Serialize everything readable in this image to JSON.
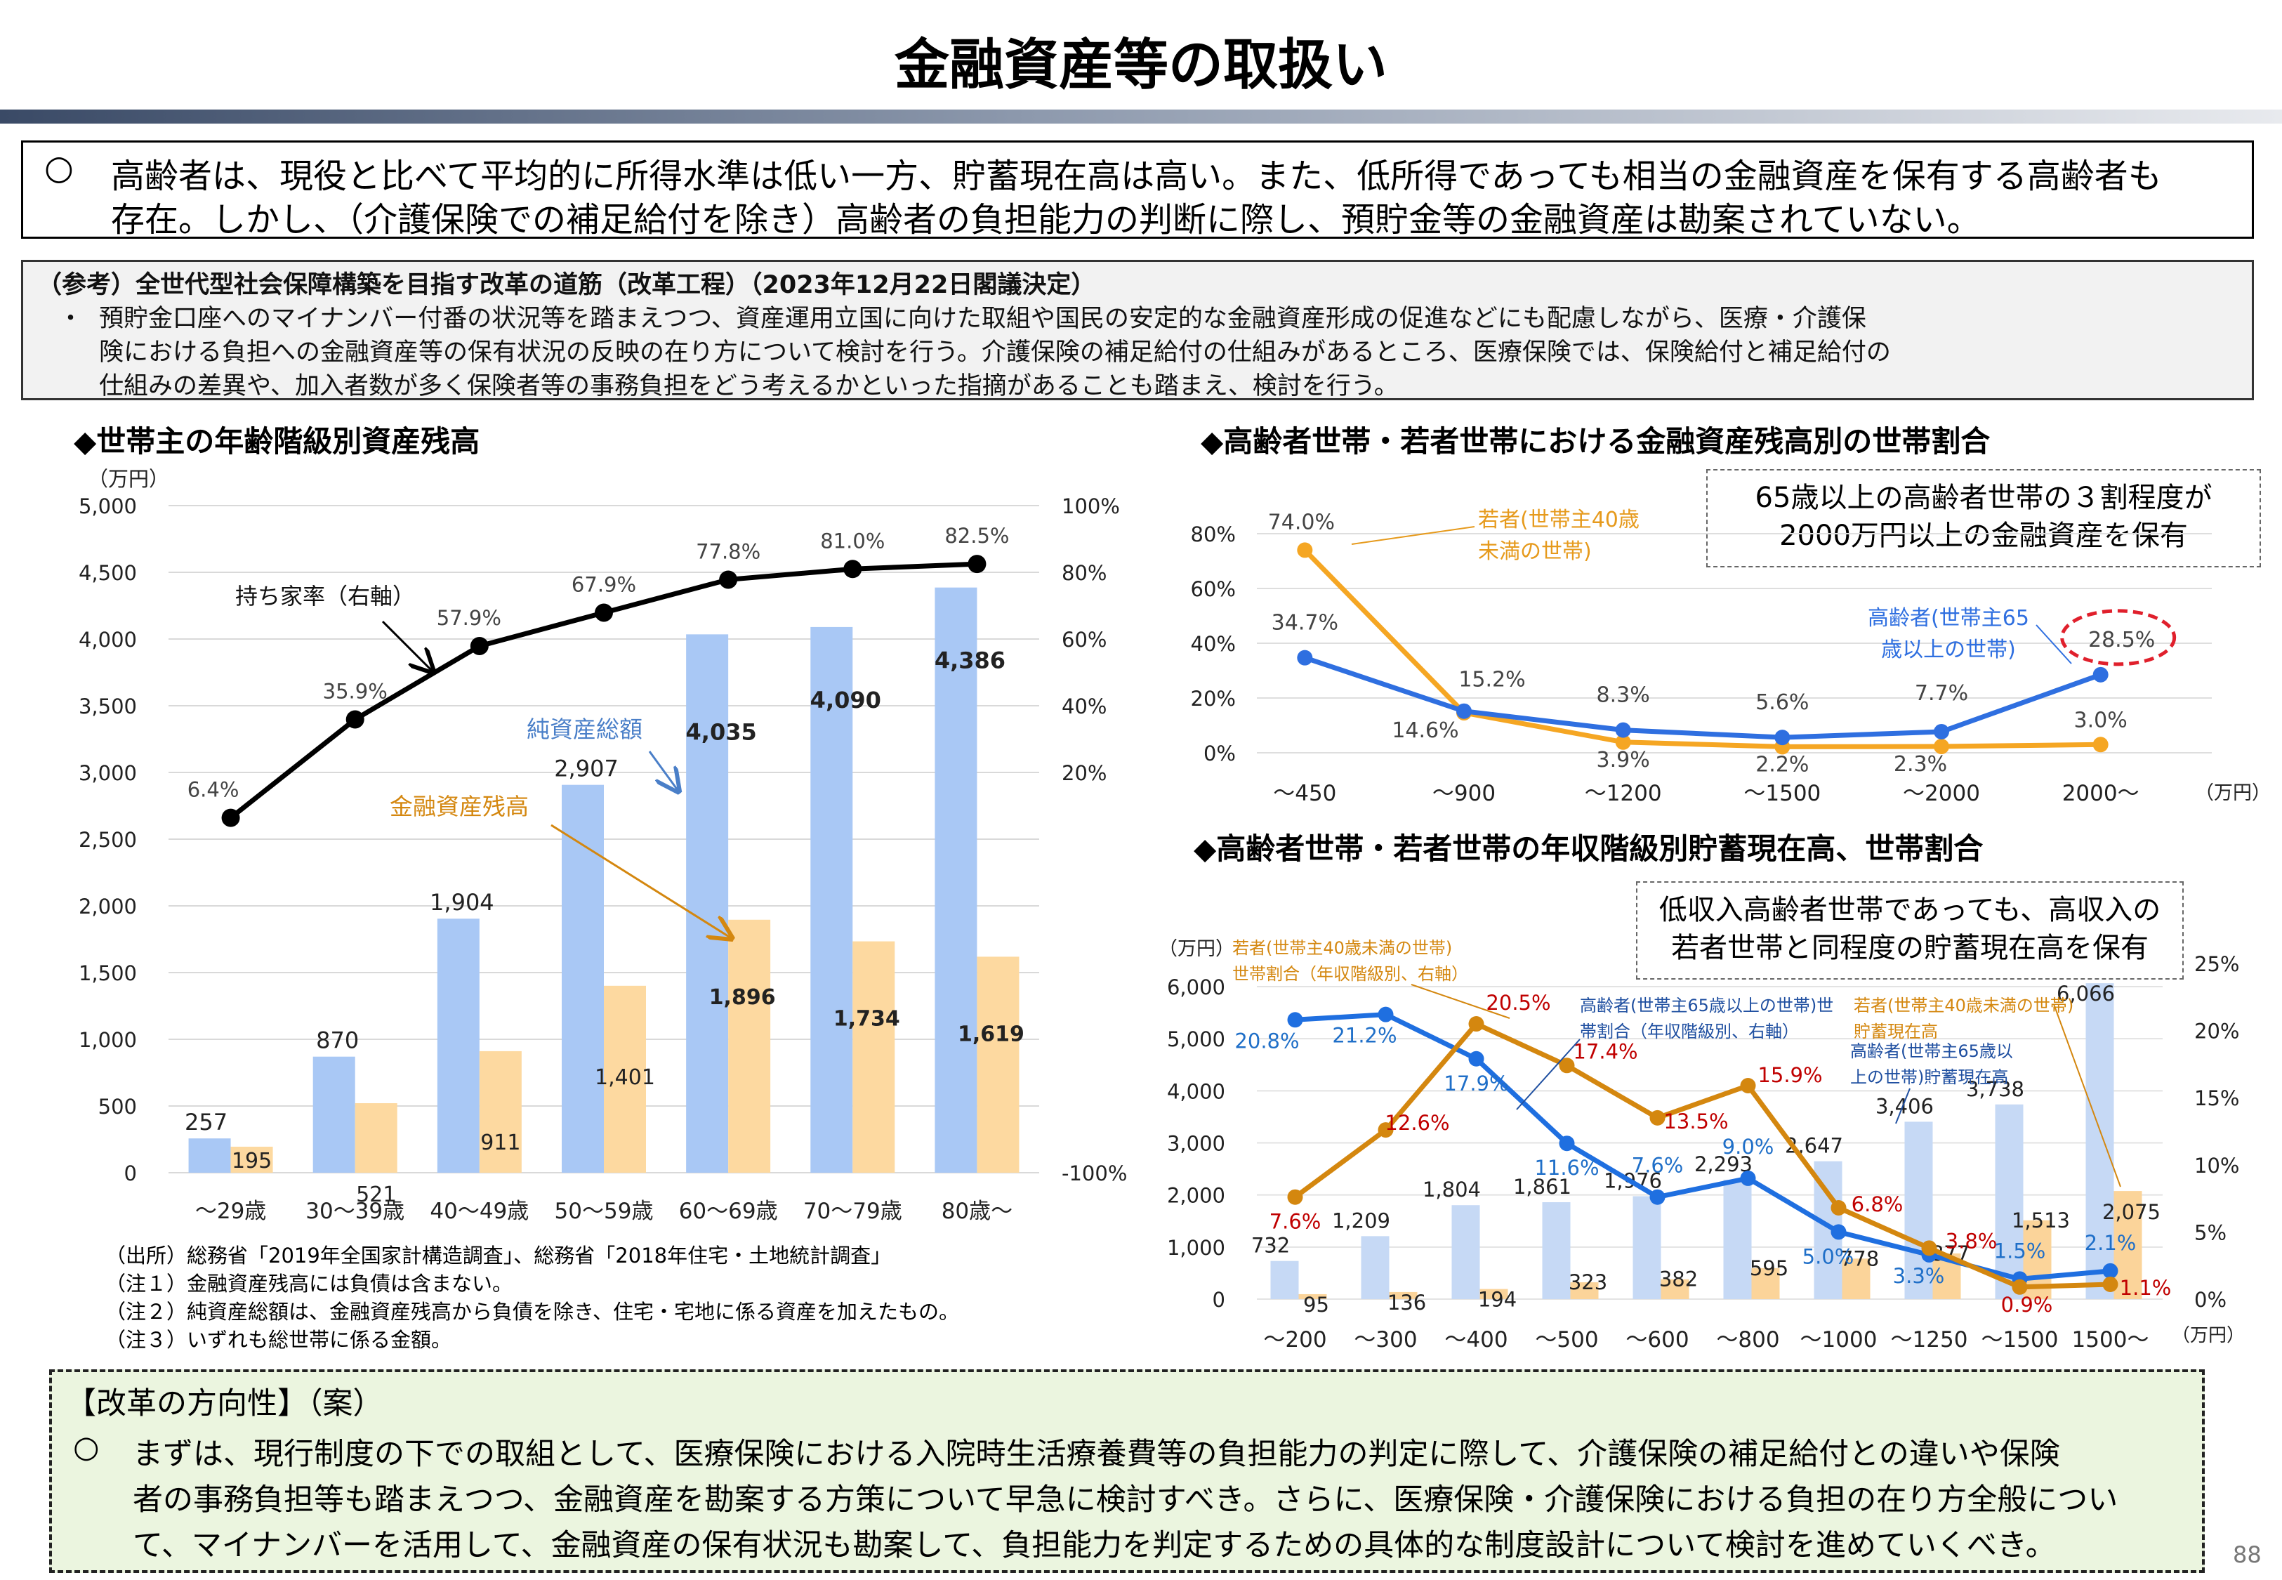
{
  "header": {
    "title": "金融資産等の取扱い"
  },
  "summary": {
    "bullet": "○",
    "line1": "高齢者は、現役と比べて平均的に所得水準は低い一方、貯蓄現在高は高い。また、低所得であっても相当の金融資産を保有する高齢者も",
    "line2": "存在。しかし、（介護保険での補足給付を除き）高齢者の負担能力の判断に際し、預貯金等の金融資産は勘案されていない。"
  },
  "reference": {
    "title": "（参考）全世代型社会保障構築を目指す改革の道筋（改革工程）（2023年12月22日閣議決定）",
    "bullet": "・",
    "line1": "預貯金口座へのマイナンバー付番の状況等を踏まえつつ、資産運用立国に向けた取組や国民の安定的な金融資産形成の促進などにも配慮しながら、医療・介護保",
    "line2": "険における負担への金融資産等の保有状況の反映の在り方について検討を行う。介護保険の補足給付の仕組みがあるところ、医療保険では、保険給付と補足給付の",
    "line3": "仕組みの差異や、加入者数が多く保険者等の事務負担をどう考えるかといった指摘があることも踏まえ、検討を行う。"
  },
  "chart_data": [
    {
      "type": "bar",
      "title": "◆世帯主の年齢階級別資産残高",
      "ylabel": "（万円）",
      "categories": [
        "～29歳",
        "30～39歳",
        "40～49歳",
        "50～59歳",
        "60～69歳",
        "70～79歳",
        "80歳～"
      ],
      "ylim": [
        0,
        5000
      ],
      "yticks": [
        "0",
        "500",
        "1,000",
        "1,500",
        "2,000",
        "2,500",
        "3,000",
        "3,500",
        "4,000",
        "4,500",
        "5,000"
      ],
      "y2lim": [
        -100,
        100
      ],
      "y2ticks": [
        "-100%",
        "20%",
        "40%",
        "60%",
        "80%",
        "100%"
      ],
      "series": [
        {
          "name": "純資産総額",
          "values": [
            257,
            870,
            1904,
            2907,
            4035,
            4090,
            4386
          ],
          "labels": [
            "257",
            "870",
            "1,904",
            "2,907",
            "4,035",
            "4,090",
            "4,386"
          ],
          "color": "#a9c8f5"
        },
        {
          "name": "金融資産残高",
          "values": [
            195,
            521,
            911,
            1401,
            1896,
            1734,
            1619
          ],
          "labels": [
            "195",
            "521",
            "911",
            "1,401",
            "1,896",
            "1,734",
            "1,619"
          ],
          "color": "#fdd9a0"
        },
        {
          "name": "持ち家率（右軸）",
          "values": [
            6.4,
            35.9,
            57.9,
            67.9,
            77.8,
            81.0,
            82.5
          ],
          "labels": [
            "6.4%",
            "35.9%",
            "57.9%",
            "67.9%",
            "77.8%",
            "81.0%",
            "82.5%"
          ],
          "color": "#000000"
        }
      ],
      "notes": [
        "（出所）総務省「2019年全国家計構造調査」、総務省「2018年住宅・土地統計調査」",
        "（注１）金融資産残高には負債は含まない。",
        "（注２）純資産総額は、金融資産残高から負債を除き、住宅・宅地に係る資産を加えたもの。",
        "（注３）いずれも総世帯に係る金額。"
      ]
    },
    {
      "type": "line",
      "title": "◆高齢者世帯・若者世帯における金融資産残高別の世帯割合",
      "categories": [
        "～450",
        "～900",
        "～1200",
        "～1500",
        "～2000",
        "2000～"
      ],
      "xunit": "（万円）",
      "ylim": [
        0,
        80
      ],
      "yticks": [
        "0%",
        "20%",
        "40%",
        "60%",
        "80%"
      ],
      "callout": [
        "65歳以上の高齢者世帯の３割程度が",
        "2000万円以上の金融資産を保有"
      ],
      "series": [
        {
          "name": "若者(世帯主40歳未満の世帯)",
          "name_lines": [
            "若者(世帯主40歳",
            "未満の世帯)"
          ],
          "values": [
            74.0,
            14.6,
            3.9,
            2.2,
            2.3,
            3.0
          ],
          "labels": [
            "74.0%",
            "14.6%",
            "3.9%",
            "2.2%",
            "2.3%",
            "3.0%"
          ],
          "color": "#f5a623"
        },
        {
          "name": "高齢者(世帯主65歳以上の世帯)",
          "name_lines": [
            "高齢者(世帯主65",
            "歳以上の世帯)"
          ],
          "values": [
            34.7,
            15.2,
            8.3,
            5.6,
            7.7,
            28.5
          ],
          "labels": [
            "34.7%",
            "15.2%",
            "8.3%",
            "5.6%",
            "7.7%",
            "28.5%"
          ],
          "color": "#2f6fe0"
        }
      ]
    },
    {
      "type": "bar",
      "title": "◆高齢者世帯・若者世帯の年収階級別貯蓄現在高、世帯割合",
      "ylabel": "（万円）",
      "xunit": "（万円）",
      "categories": [
        "～200",
        "～300",
        "～400",
        "～500",
        "～600",
        "～800",
        "～1000",
        "～1250",
        "～1500",
        "1500～"
      ],
      "ylim": [
        0,
        6000
      ],
      "yticks": [
        "0",
        "1,000",
        "2,000",
        "3,000",
        "4,000",
        "5,000",
        "6,000"
      ],
      "y2lim": [
        0,
        25
      ],
      "y2ticks": [
        "0%",
        "5%",
        "10%",
        "15%",
        "20%",
        "25%"
      ],
      "callout": [
        "低収入高齢者世帯であっても、高収入の",
        "若者世帯と同程度の貯蓄現在高を保有"
      ],
      "series": [
        {
          "name": "高齢者(世帯主65歳以上の世帯)貯蓄現在高",
          "name_lines": [
            "高齢者(世帯主65歳以",
            "上の世帯)貯蓄現在高"
          ],
          "values": [
            732,
            1209,
            1804,
            1861,
            1976,
            2293,
            2647,
            3406,
            3738,
            6066
          ],
          "labels": [
            "732",
            "1,209",
            "1,804",
            "1,861",
            "1,976",
            "2,293",
            "2,647",
            "3,406",
            "3,738",
            "6,066"
          ],
          "color": "#c6d9f5"
        },
        {
          "name": "若者(世帯主40歳未満の世帯)貯蓄現在高",
          "name_lines": [
            "若者(世帯主40歳未満の世帯)",
            "貯蓄現在高"
          ],
          "values": [
            95,
            136,
            194,
            323,
            382,
            595,
            778,
            877,
            1513,
            2075
          ],
          "labels": [
            "95",
            "136",
            "194",
            "323",
            "382",
            "595",
            "778",
            "877",
            "1,513",
            "2,075"
          ],
          "color": "#fbd49a"
        },
        {
          "name": "高齢者(世帯主65歳以上の世帯)世帯割合（年収階級別、右軸）",
          "name_lines": [
            "高齢者(世帯主65歳以上の世帯)世",
            "帯割合（年収階級別、右軸）"
          ],
          "values": [
            20.8,
            21.2,
            17.9,
            11.6,
            7.6,
            9.0,
            5.0,
            3.3,
            1.5,
            2.1
          ],
          "labels": [
            "20.8%",
            "21.2%",
            "17.9%",
            "11.6%",
            "7.6%",
            "9.0%",
            "5.0%",
            "3.3%",
            "1.5%",
            "2.1%"
          ],
          "color": "#1f6fe0"
        },
        {
          "name": "若者(世帯主40歳未満の世帯)世帯割合（年収階級別、右軸）",
          "name_lines": [
            "若者(世帯主40歳未満の世帯)",
            "世帯割合（年収階級別、右軸）"
          ],
          "values": [
            7.6,
            12.6,
            20.5,
            17.4,
            13.5,
            15.9,
            6.8,
            3.8,
            0.9,
            1.1
          ],
          "labels": [
            "7.6%",
            "12.6%",
            "20.5%",
            "17.4%",
            "13.5%",
            "15.9%",
            "6.8%",
            "3.8%",
            "0.9%",
            "1.1%"
          ],
          "color": "#d4870f"
        }
      ]
    }
  ],
  "reform": {
    "heading": "【改革の方向性】（案）",
    "bullet": "○",
    "line1": "まずは、現行制度の下での取組として、医療保険における入院時生活療養費等の負担能力の判定に際して、介護保険の補足給付との違いや保険",
    "line2": "者の事務負担等も踏まえつつ、金融資産を勘案する方策について早急に検討すべき。さらに、医療保険・介護保険における負担の在り方全般につい",
    "line3": "て、マイナンバーを活用して、金融資産の保有状況も勘案して、負担能力を判定するための具体的な制度設計について検討を進めていくべき。"
  },
  "footer": {
    "page_number": "88"
  }
}
